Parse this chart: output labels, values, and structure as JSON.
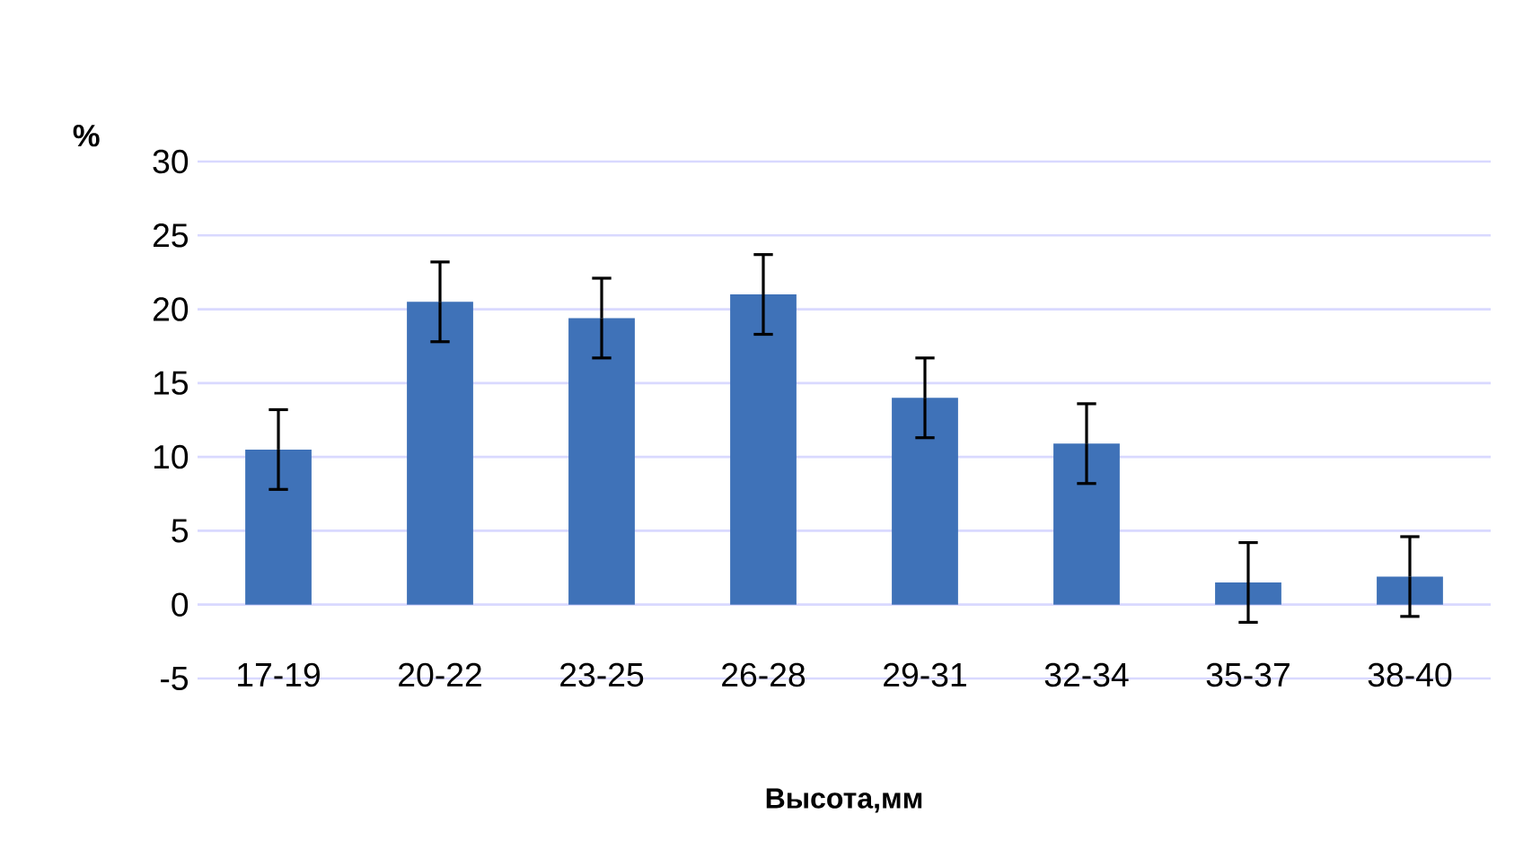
{
  "chart_data": {
    "type": "bar",
    "categories": [
      "17-19",
      "20-22",
      "23-25",
      "26-28",
      "29-31",
      "32-34",
      "35-37",
      "38-40"
    ],
    "values": [
      10.5,
      20.5,
      19.4,
      21.0,
      14.0,
      10.9,
      1.5,
      1.9
    ],
    "errors": [
      2.7,
      2.7,
      2.7,
      2.7,
      2.7,
      2.7,
      2.7,
      2.7
    ],
    "color": "#3f72b8",
    "ylim": [
      -5,
      30
    ],
    "yticks": [
      -5,
      0,
      5,
      10,
      15,
      20,
      25,
      30
    ],
    "grid": "y",
    "xlabel": "Высота,мм",
    "ylabel": "%"
  }
}
